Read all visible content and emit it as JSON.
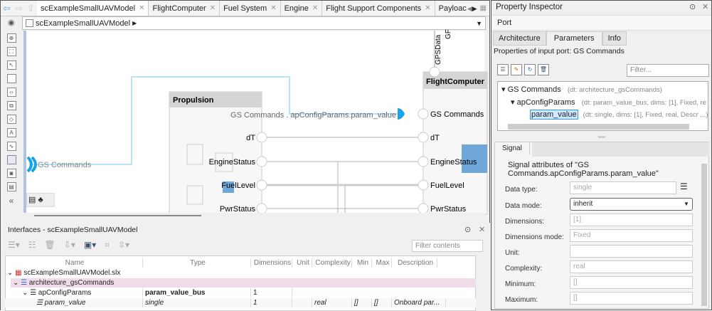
{
  "editor": {
    "tabs": [
      {
        "label": "scExampleSmallUAVModel",
        "active": true
      },
      {
        "label": "FlightComputer"
      },
      {
        "label": "Fuel System"
      },
      {
        "label": "Engine"
      },
      {
        "label": "Flight Support Components"
      },
      {
        "label": "Payloac"
      }
    ],
    "breadcrumb": "scExampleSmallUAVModel",
    "diagram": {
      "propulsion": {
        "title": "Propulsion",
        "ports": [
          "dT",
          "EngineStatus",
          "FuelLevel",
          "PwrStatus"
        ]
      },
      "flight_computer": {
        "title": "FlightComputer",
        "ports": [
          "GS Commands",
          "dT",
          "EngineStatus",
          "FuelLevel",
          "PwrStatus"
        ],
        "top_ports": [
          "GPSData",
          "GF"
        ]
      },
      "root_port": "GS Commands",
      "highlighted_label": "GS Commands . apConfigParams.param_value",
      "highlight_color": "#1aa3e8"
    }
  },
  "interfaces": {
    "title": "Interfaces - scExampleSmallUAVModel",
    "filter_placeholder": "Filter contents",
    "columns": [
      "Name",
      "Type",
      "Dimensions",
      "Unit",
      "Complexity",
      "Min",
      "Max",
      "Description"
    ],
    "rows": [
      {
        "name": "scExampleSmallUAVModel.slx",
        "cells": [
          "",
          "",
          "",
          "",
          "",
          "",
          ""
        ]
      },
      {
        "name": "architecture_gsCommands",
        "cells": [
          "",
          "",
          "",
          "",
          "",
          "",
          ""
        ],
        "selected": true
      },
      {
        "name": "apConfigParams",
        "cells": [
          "param_value_bus",
          "1",
          "",
          "",
          "",
          "",
          ""
        ]
      },
      {
        "name": "param_value",
        "cells": [
          "single",
          "1",
          "",
          "real",
          "[]",
          "[]",
          "Onboard par..."
        ]
      }
    ]
  },
  "inspector": {
    "title": "Property Inspector",
    "object_type": "Port",
    "tabs": [
      "Architecture",
      "Parameters",
      "Info"
    ],
    "active_tab": "Parameters",
    "subtitle": "Properties of input port: GS Commands",
    "filter_placeholder": "Filter...",
    "tree": [
      {
        "name": "GS Commands",
        "detail": "(dt: architecture_gsCommands)"
      },
      {
        "name": "apConfigParams",
        "detail": "(dt: param_value_bus, dims: [1], Fixed, re"
      },
      {
        "name": "param_value",
        "detail": "(dt: single, dims: [1], Fixed, real, Descr ...)"
      }
    ],
    "signal_tab": "Signal",
    "group_title": "Signal attributes of \"GS Commands.apConfigParams.param_value\"",
    "fields": [
      {
        "label": "Data type:",
        "value": "single"
      },
      {
        "label": "Data mode:",
        "value": "inherit"
      },
      {
        "label": "Dimensions:",
        "value": "[1]"
      },
      {
        "label": "Dimensions mode:",
        "value": "Fixed"
      },
      {
        "label": "Unit:",
        "value": ""
      },
      {
        "label": "Complexity:",
        "value": "real"
      },
      {
        "label": "Minimum:",
        "value": "[]"
      },
      {
        "label": "Maximum:",
        "value": "[]"
      }
    ]
  }
}
